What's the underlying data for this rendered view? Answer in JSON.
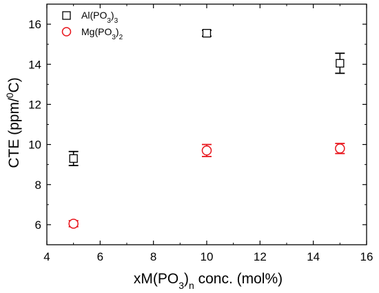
{
  "chart_data": {
    "type": "scatter",
    "title": "",
    "xlabel": {
      "prefix": "xM(PO",
      "sub1": "3",
      "mid": ")",
      "sub2": "n",
      "suffix": " conc. (mol%)"
    },
    "ylabel": {
      "prefix": "CTE (ppm/",
      "sup": "0",
      "suffix": "C)"
    },
    "xlim": [
      4,
      16
    ],
    "ylim": [
      5,
      17
    ],
    "xticks": [
      4,
      6,
      8,
      10,
      12,
      14,
      16
    ],
    "yticks": [
      6,
      8,
      10,
      12,
      14,
      16
    ],
    "grid": false,
    "legend_position": "top-left",
    "series": [
      {
        "name": {
          "prefix": "Al(PO",
          "sub1": "3",
          "mid": ")",
          "sub2": "3"
        },
        "marker": "open-square",
        "color": "#000000",
        "x": [
          5,
          10,
          15
        ],
        "y": [
          9.3,
          15.55,
          14.05
        ],
        "err": [
          0.35,
          0.15,
          0.5
        ]
      },
      {
        "name": {
          "prefix": "Mg(PO",
          "sub1": "3",
          "mid": ")",
          "sub2": "2"
        },
        "marker": "open-circle",
        "color": "#e8141b",
        "x": [
          5,
          10,
          15
        ],
        "y": [
          6.05,
          9.7,
          9.8
        ],
        "err": [
          0.15,
          0.3,
          0.25
        ]
      }
    ]
  }
}
